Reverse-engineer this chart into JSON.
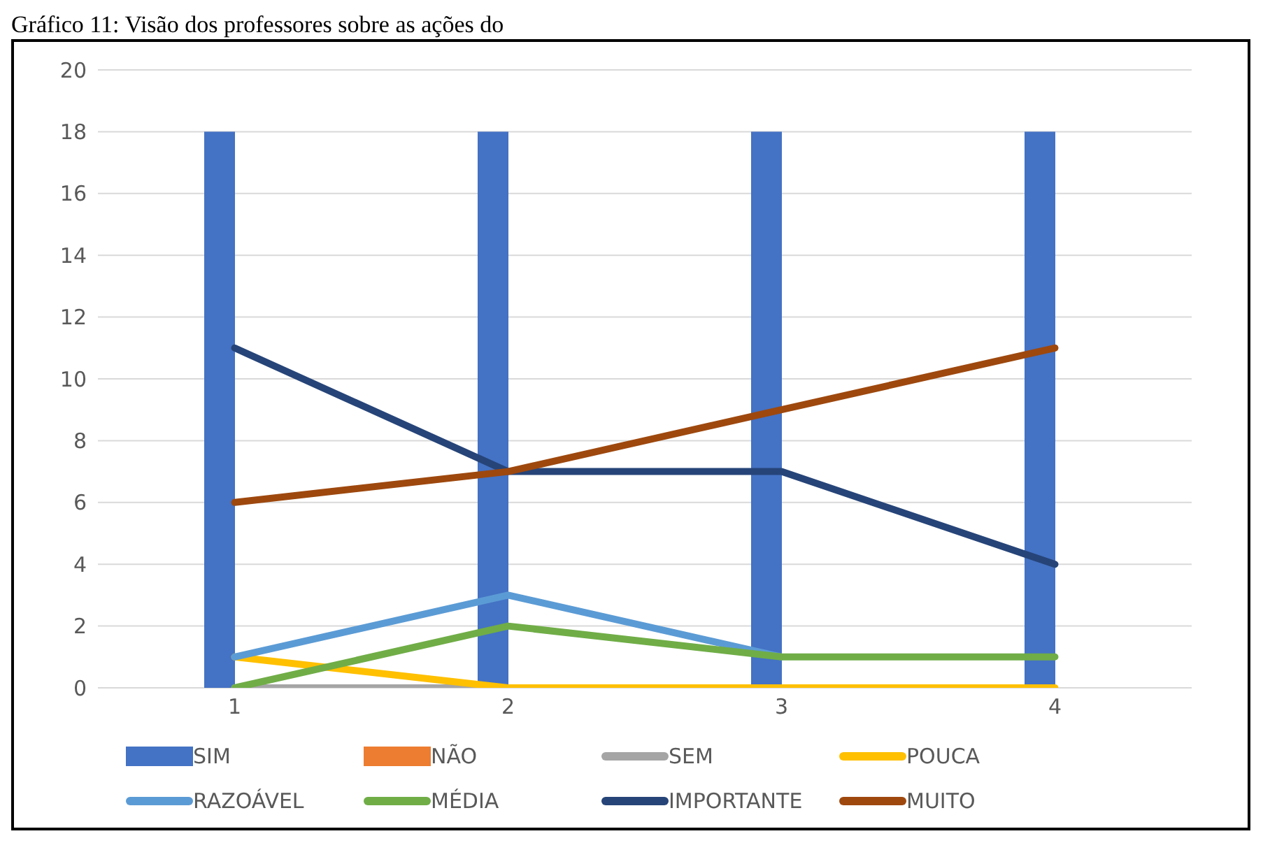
{
  "chart_data": {
    "type": "bar",
    "title": "Gráfico 11: Visão dos professores sobre as ações do",
    "categories": [
      "1",
      "2",
      "3",
      "4"
    ],
    "series": [
      {
        "name": "SIM",
        "color": "#4472c4",
        "values": [
          18,
          18,
          18,
          18
        ]
      },
      {
        "name": "NÃO",
        "color": "#ed7d31",
        "values": [
          null,
          null,
          null,
          null
        ]
      },
      {
        "name": "SEM",
        "type": "line",
        "color": "#a5a5a5",
        "values": [
          0,
          0,
          null,
          null
        ]
      },
      {
        "name": "POUCA",
        "type": "line",
        "color": "#ffc000",
        "values": [
          1,
          0,
          0,
          0
        ]
      },
      {
        "name": "RAZOÁVEL",
        "type": "line",
        "color": "#5b9bd5",
        "values": [
          1,
          3,
          1,
          null
        ]
      },
      {
        "name": "MÉDIA",
        "type": "line",
        "color": "#70ad47",
        "values": [
          0,
          2,
          1,
          1
        ]
      },
      {
        "name": "IMPORTANTE",
        "type": "line",
        "color": "#264478",
        "values": [
          11,
          7,
          7,
          4
        ]
      },
      {
        "name": "MUITO",
        "type": "line",
        "color": "#9e480e",
        "values": [
          6,
          7,
          9,
          11
        ]
      }
    ],
    "ylim": [
      0,
      20
    ],
    "yticks": [
      0,
      2,
      4,
      6,
      8,
      10,
      12,
      14,
      16,
      18,
      20
    ],
    "grid": "y",
    "legend": "bottom",
    "marker": "none"
  }
}
